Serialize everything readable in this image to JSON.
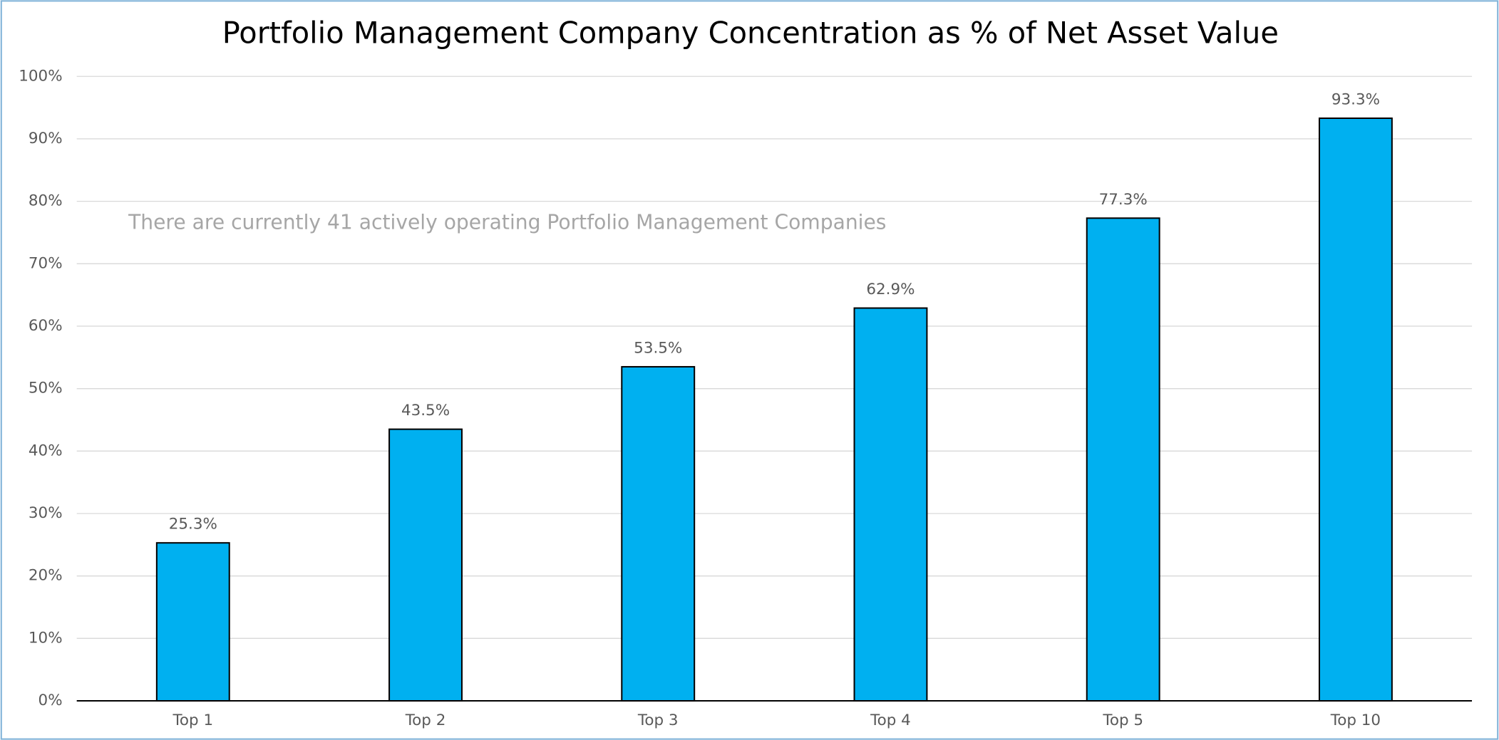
{
  "chart_data": {
    "type": "bar",
    "title": "Portfolio Management Company Concentration as % of Net Asset Value",
    "annotation": "There are currently 41 actively operating Portfolio Management Companies",
    "categories": [
      "Top 1",
      "Top 2",
      "Top 3",
      "Top 4",
      "Top 5",
      "Top 10"
    ],
    "values": [
      25.3,
      43.5,
      53.5,
      62.9,
      77.3,
      93.3
    ],
    "value_labels": [
      "25.3%",
      "43.5%",
      "53.5%",
      "62.9%",
      "77.3%",
      "93.3%"
    ],
    "color": "#00b0f0",
    "ylim": [
      0,
      100
    ],
    "yticks": [
      {
        "value": 0,
        "label": "0%"
      },
      {
        "value": 10,
        "label": "10%"
      },
      {
        "value": 20,
        "label": "20%"
      },
      {
        "value": 30,
        "label": "30%"
      },
      {
        "value": 40,
        "label": "40%"
      },
      {
        "value": 50,
        "label": "50%"
      },
      {
        "value": 60,
        "label": "60%"
      },
      {
        "value": 70,
        "label": "70%"
      },
      {
        "value": 80,
        "label": "80%"
      },
      {
        "value": 90,
        "label": "90%"
      },
      {
        "value": 100,
        "label": "100%"
      }
    ],
    "grid": true
  }
}
